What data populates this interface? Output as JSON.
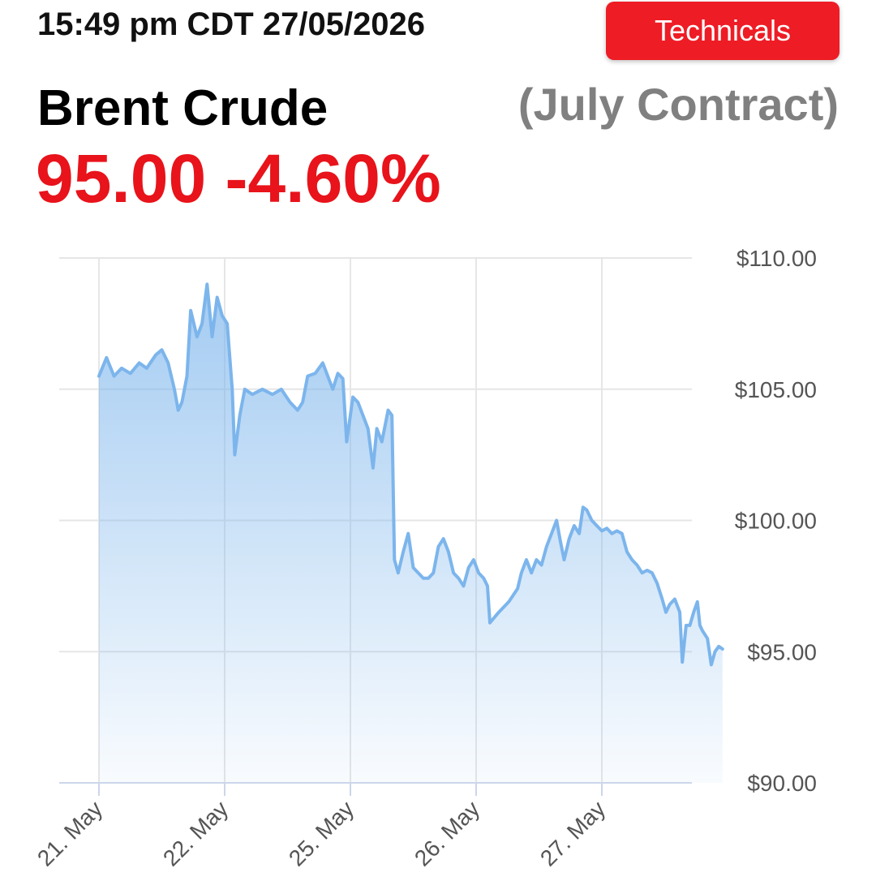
{
  "header": {
    "timestamp": "15:49 pm CDT 27/05/2026",
    "technicals_label": "Technicals",
    "instrument": "Brent Crude",
    "contract": "(July Contract)",
    "price": "95.00",
    "change": "-4.60%",
    "quote_text": "95.00 -4.60%"
  },
  "colors": {
    "accent": "#ee1c25",
    "negative": "#e8131b",
    "line": "#7cb5ec",
    "grid": "#e6e6e6"
  },
  "chart_data": {
    "type": "area",
    "title": "",
    "xlabel": "",
    "ylabel": "",
    "ylim": [
      90,
      110
    ],
    "yticks": [
      90,
      95,
      100,
      105,
      110
    ],
    "ytick_labels": [
      "$90.00",
      "$95.00",
      "$100.00",
      "$105.00",
      "$110.00"
    ],
    "categories": [
      "21. May",
      "22. May",
      "25. May",
      "26. May",
      "27. May"
    ],
    "grid": true,
    "legend": "none",
    "series": [
      {
        "values": [
          [
            0.0,
            105.5
          ],
          [
            0.06,
            106.2
          ],
          [
            0.12,
            105.5
          ],
          [
            0.18,
            105.8
          ],
          [
            0.25,
            105.6
          ],
          [
            0.32,
            106.0
          ],
          [
            0.38,
            105.8
          ],
          [
            0.45,
            106.3
          ],
          [
            0.5,
            106.5
          ],
          [
            0.55,
            106.0
          ],
          [
            0.6,
            105.0
          ],
          [
            0.63,
            104.2
          ],
          [
            0.66,
            104.5
          ],
          [
            0.7,
            105.5
          ],
          [
            0.73,
            108.0
          ],
          [
            0.78,
            107.0
          ],
          [
            0.82,
            107.5
          ],
          [
            0.86,
            109.0
          ],
          [
            0.9,
            107.0
          ],
          [
            0.94,
            108.5
          ],
          [
            0.98,
            107.8
          ],
          [
            1.02,
            107.5
          ],
          [
            1.06,
            105.0
          ],
          [
            1.08,
            102.5
          ],
          [
            1.12,
            104.0
          ],
          [
            1.16,
            105.0
          ],
          [
            1.22,
            104.8
          ],
          [
            1.3,
            105.0
          ],
          [
            1.38,
            104.8
          ],
          [
            1.45,
            105.0
          ],
          [
            1.52,
            104.5
          ],
          [
            1.58,
            104.2
          ],
          [
            1.62,
            104.5
          ],
          [
            1.66,
            105.5
          ],
          [
            1.72,
            105.6
          ],
          [
            1.78,
            106.0
          ],
          [
            1.82,
            105.5
          ],
          [
            1.86,
            105.0
          ],
          [
            1.9,
            105.6
          ],
          [
            1.94,
            105.4
          ],
          [
            1.97,
            103.0
          ],
          [
            2.02,
            104.7
          ],
          [
            2.06,
            104.5
          ],
          [
            2.1,
            104.0
          ],
          [
            2.14,
            103.5
          ],
          [
            2.18,
            102.0
          ],
          [
            2.21,
            103.5
          ],
          [
            2.25,
            103.0
          ],
          [
            2.3,
            104.2
          ],
          [
            2.33,
            104.0
          ],
          [
            2.35,
            98.5
          ],
          [
            2.38,
            98.0
          ],
          [
            2.42,
            98.8
          ],
          [
            2.46,
            99.5
          ],
          [
            2.5,
            98.2
          ],
          [
            2.54,
            98.0
          ],
          [
            2.58,
            97.8
          ],
          [
            2.62,
            97.8
          ],
          [
            2.66,
            98.0
          ],
          [
            2.7,
            99.0
          ],
          [
            2.74,
            99.3
          ],
          [
            2.78,
            98.8
          ],
          [
            2.82,
            98.0
          ],
          [
            2.86,
            97.8
          ],
          [
            2.9,
            97.5
          ],
          [
            2.94,
            98.2
          ],
          [
            2.98,
            98.5
          ],
          [
            3.02,
            98.0
          ],
          [
            3.06,
            97.8
          ],
          [
            3.09,
            97.5
          ],
          [
            3.11,
            96.1
          ],
          [
            3.18,
            96.5
          ],
          [
            3.26,
            96.9
          ],
          [
            3.33,
            97.4
          ],
          [
            3.36,
            98.0
          ],
          [
            3.4,
            98.5
          ],
          [
            3.44,
            98.0
          ],
          [
            3.48,
            98.5
          ],
          [
            3.52,
            98.3
          ],
          [
            3.56,
            99.0
          ],
          [
            3.6,
            99.5
          ],
          [
            3.64,
            100.0
          ],
          [
            3.67,
            99.2
          ],
          [
            3.7,
            98.5
          ],
          [
            3.74,
            99.3
          ],
          [
            3.78,
            99.8
          ],
          [
            3.82,
            99.5
          ],
          [
            3.85,
            100.5
          ],
          [
            3.88,
            100.4
          ],
          [
            3.92,
            100.0
          ],
          [
            3.96,
            99.8
          ],
          [
            4.0,
            99.6
          ],
          [
            4.04,
            99.7
          ],
          [
            4.08,
            99.5
          ],
          [
            4.12,
            99.6
          ],
          [
            4.16,
            99.5
          ],
          [
            4.2,
            98.8
          ],
          [
            4.24,
            98.5
          ],
          [
            4.28,
            98.3
          ],
          [
            4.32,
            98.0
          ],
          [
            4.36,
            98.1
          ],
          [
            4.4,
            98.0
          ],
          [
            4.44,
            97.6
          ],
          [
            4.48,
            97.0
          ],
          [
            4.51,
            96.5
          ],
          [
            4.54,
            96.8
          ],
          [
            4.58,
            97.0
          ],
          [
            4.62,
            96.5
          ],
          [
            4.64,
            94.6
          ],
          [
            4.67,
            96.0
          ],
          [
            4.7,
            96.0
          ],
          [
            4.73,
            96.5
          ],
          [
            4.76,
            96.9
          ],
          [
            4.78,
            96.0
          ],
          [
            4.8,
            95.8
          ],
          [
            4.84,
            95.5
          ],
          [
            4.87,
            94.5
          ],
          [
            4.9,
            95.0
          ],
          [
            4.93,
            95.2
          ],
          [
            4.96,
            95.1
          ]
        ]
      }
    ]
  }
}
